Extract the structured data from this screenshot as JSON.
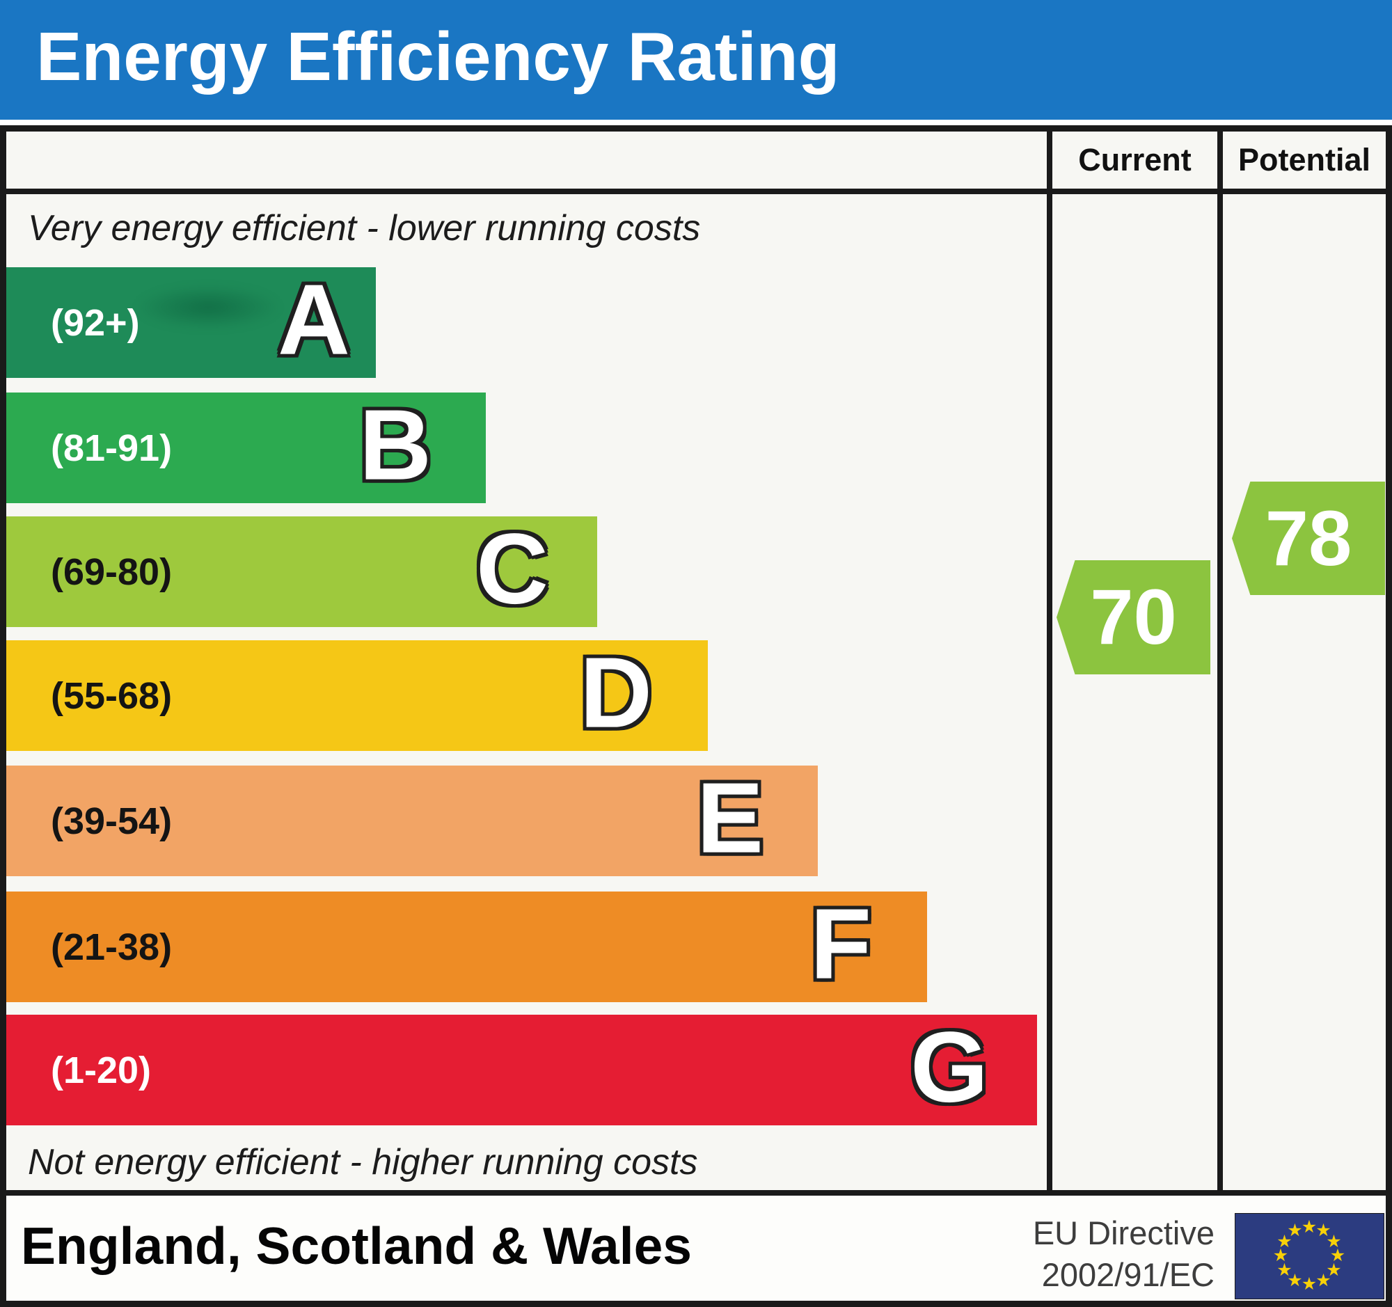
{
  "header": {
    "title": "Energy Efficiency Rating"
  },
  "table": {
    "columns": {
      "current": "Current",
      "potential": "Potential"
    },
    "captions": {
      "top": "Very energy efficient - lower running costs",
      "bottom": "Not energy efficient - higher running costs"
    }
  },
  "bands": [
    {
      "letter": "A",
      "range": "(92+)",
      "color": "#1e8b58",
      "range_color": "#ffffff"
    },
    {
      "letter": "B",
      "range": "(81-91)",
      "color": "#2caa50",
      "range_color": "#ffffff"
    },
    {
      "letter": "C",
      "range": "(69-80)",
      "color": "#9ec93d",
      "range_color": "#141414"
    },
    {
      "letter": "D",
      "range": "(55-68)",
      "color": "#f5c716",
      "range_color": "#141414"
    },
    {
      "letter": "E",
      "range": "(39-54)",
      "color": "#f2a465",
      "range_color": "#141414"
    },
    {
      "letter": "F",
      "range": "(21-38)",
      "color": "#ee8c25",
      "range_color": "#141414"
    },
    {
      "letter": "G",
      "range": "(1-20)",
      "color": "#e51d33",
      "range_color": "#ffffff"
    }
  ],
  "markers": {
    "current": {
      "value": "70",
      "color": "#8cc43f"
    },
    "potential": {
      "value": "78",
      "color": "#8cc43f"
    }
  },
  "footer": {
    "region": "England, Scotland & Wales",
    "directive": {
      "line1": "EU Directive",
      "line2": "2002/91/EC"
    },
    "eu_flag": {
      "background": "#2c3c80",
      "star_color": "#f8d008",
      "star_glyph": "★",
      "star_count": 12
    }
  },
  "colors": {
    "title_bar": "#1a76c3",
    "border": "#1a1a1a",
    "panel_bg": "#f7f7f3"
  },
  "chart_data": {
    "type": "bar",
    "title": "Energy Efficiency Rating",
    "categories": [
      "A",
      "B",
      "C",
      "D",
      "E",
      "F",
      "G"
    ],
    "band_ranges": [
      "92+",
      "81-91",
      "69-80",
      "55-68",
      "39-54",
      "21-38",
      "1-20"
    ],
    "band_colors": [
      "#1e8b58",
      "#2caa50",
      "#9ec93d",
      "#f5c716",
      "#f2a465",
      "#ee8c25",
      "#e51d33"
    ],
    "bar_lengths_relative": [
      0.36,
      0.47,
      0.57,
      0.68,
      0.79,
      0.89,
      1.0
    ],
    "current": {
      "value": 70,
      "band": "C"
    },
    "potential": {
      "value": 78,
      "band": "C"
    },
    "top_label": "Very energy efficient - lower running costs",
    "bottom_label": "Not energy efficient - higher running costs",
    "column_headers": [
      "Current",
      "Potential"
    ],
    "region": "England, Scotland & Wales",
    "directive": "EU Directive 2002/91/EC",
    "legend_position": "none",
    "grid": false
  }
}
